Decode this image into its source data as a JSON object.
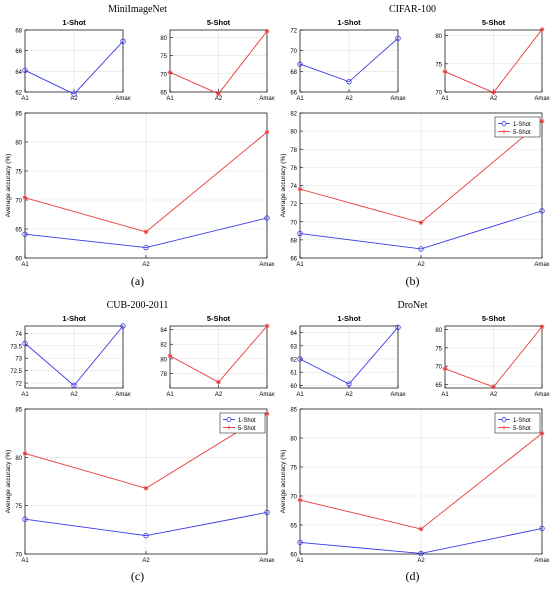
{
  "colors": {
    "one_shot": "#3a3ae8",
    "five_shot": "#e83a3a",
    "axis": "#000000",
    "grid": "#e2e2e2"
  },
  "panels": [
    {
      "title": "MiniImageNet",
      "tag": "(a)",
      "categories": [
        "A1",
        "A2",
        "Amax"
      ],
      "small": [
        {
          "title": "1-Shot",
          "ylim": [
            62,
            68
          ],
          "ticks": [
            62,
            64,
            66,
            68
          ],
          "values": [
            64.1,
            61.8,
            66.9
          ],
          "color": "one_shot"
        },
        {
          "title": "5-Shot",
          "ylim": [
            65,
            82
          ],
          "ticks": [
            65,
            70,
            75,
            80
          ],
          "values": [
            70.4,
            64.5,
            81.7
          ],
          "color": "five_shot"
        }
      ],
      "big": {
        "ylabel": "Average accuracy (%)",
        "ylim": [
          60,
          85
        ],
        "ticks": [
          60,
          65,
          70,
          75,
          80,
          85
        ],
        "series": [
          {
            "values": [
              64.1,
              61.8,
              66.9
            ],
            "color": "one_shot",
            "marker": "circle"
          },
          {
            "values": [
              70.4,
              64.5,
              81.7
            ],
            "color": "five_shot",
            "marker": "star"
          }
        ],
        "legend": []
      }
    },
    {
      "title": "CIFAR-100",
      "tag": "(b)",
      "categories": [
        "A1",
        "A2",
        "Amax"
      ],
      "small": [
        {
          "title": "1-Shot",
          "ylim": [
            66,
            72
          ],
          "ticks": [
            66,
            68,
            70,
            72
          ],
          "values": [
            68.7,
            67.0,
            71.2
          ],
          "color": "one_shot"
        },
        {
          "title": "5-Shot",
          "ylim": [
            70,
            81
          ],
          "ticks": [
            70,
            75,
            80
          ],
          "values": [
            73.6,
            69.9,
            81.1
          ],
          "color": "five_shot"
        }
      ],
      "big": {
        "ylabel": "Average accuracy (%)",
        "ylim": [
          66,
          82
        ],
        "ticks": [
          66,
          68,
          70,
          72,
          74,
          76,
          78,
          80,
          82
        ],
        "series": [
          {
            "values": [
              68.7,
              67.0,
              71.2
            ],
            "color": "one_shot",
            "marker": "circle"
          },
          {
            "values": [
              73.6,
              69.9,
              81.1
            ],
            "color": "five_shot",
            "marker": "star"
          }
        ],
        "legend": [
          "1-Shot",
          "5-Shot"
        ]
      }
    },
    {
      "title": "CUB-200-2011",
      "tag": "(c)",
      "categories": [
        "A1",
        "A2",
        "Amax"
      ],
      "small": [
        {
          "title": "1-Shot",
          "ylim": [
            71.8,
            74.3
          ],
          "ticks": [
            72,
            72.5,
            73,
            73.5,
            74
          ],
          "values": [
            73.6,
            71.9,
            74.3
          ],
          "color": "one_shot"
        },
        {
          "title": "5-Shot",
          "ylim": [
            76,
            84.5
          ],
          "ticks": [
            78,
            80,
            82,
            84
          ],
          "values": [
            80.4,
            76.8,
            84.5
          ],
          "color": "five_shot"
        }
      ],
      "big": {
        "ylabel": "Average accuracy (%)",
        "ylim": [
          70,
          85
        ],
        "ticks": [
          70,
          75,
          80,
          85
        ],
        "series": [
          {
            "values": [
              73.6,
              71.9,
              74.3
            ],
            "color": "one_shot",
            "marker": "circle"
          },
          {
            "values": [
              80.4,
              76.8,
              84.5
            ],
            "color": "five_shot",
            "marker": "star"
          }
        ],
        "legend": [
          "1-Shot",
          "5-Shot"
        ]
      }
    },
    {
      "title": "DroNet",
      "tag": "(d)",
      "categories": [
        "A1",
        "A2",
        "Amax"
      ],
      "small": [
        {
          "title": "1-Shot",
          "ylim": [
            59.8,
            64.5
          ],
          "ticks": [
            60,
            61,
            62,
            63,
            64
          ],
          "values": [
            62.0,
            60.1,
            64.4
          ],
          "color": "one_shot"
        },
        {
          "title": "5-Shot",
          "ylim": [
            64,
            81
          ],
          "ticks": [
            65,
            70,
            75,
            80
          ],
          "values": [
            69.3,
            64.3,
            80.8
          ],
          "color": "five_shot"
        }
      ],
      "big": {
        "ylabel": "Average accuracy (%)",
        "ylim": [
          60,
          85
        ],
        "ticks": [
          60,
          65,
          70,
          75,
          80,
          85
        ],
        "series": [
          {
            "values": [
              62.0,
              60.1,
              64.4
            ],
            "color": "one_shot",
            "marker": "circle"
          },
          {
            "values": [
              69.3,
              64.3,
              80.8
            ],
            "color": "five_shot",
            "marker": "star"
          }
        ],
        "legend": [
          "1-Shot",
          "5-Shot"
        ]
      }
    }
  ]
}
